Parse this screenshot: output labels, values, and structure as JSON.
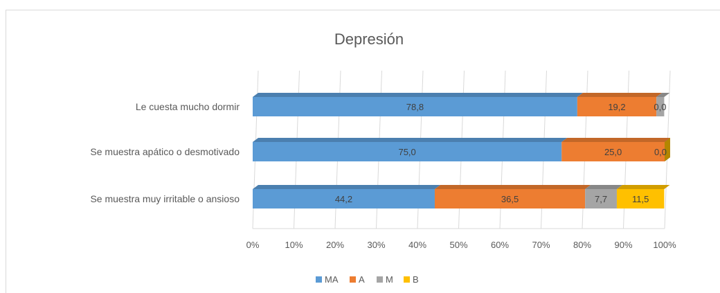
{
  "chart_data": {
    "type": "bar",
    "orientation": "horizontal",
    "stacked": "percent",
    "title": "Depresión",
    "categories": [
      "Le cuesta mucho dormir",
      "Se muestra apático o desmotivado",
      "Se muestra muy irritable o ansioso"
    ],
    "series": [
      {
        "name": "MA",
        "color": "#5b9bd5",
        "values": [
          78.8,
          75.0,
          44.2
        ],
        "labels": [
          "78,8",
          "75,0",
          "44,2"
        ]
      },
      {
        "name": "A",
        "color": "#ed7d31",
        "values": [
          19.2,
          25.0,
          36.5
        ],
        "labels": [
          "19,2",
          "25,0",
          "36,5"
        ]
      },
      {
        "name": "M",
        "color": "#a5a5a5",
        "values": [
          1.9,
          0.0,
          7.7
        ],
        "labels": [
          "",
          "",
          "7,7"
        ]
      },
      {
        "name": "B",
        "color": "#ffc000",
        "values": [
          0.0,
          0.0,
          11.5
        ],
        "labels": [
          "0,0",
          "0,0",
          "11,5"
        ]
      }
    ],
    "xlim": [
      0,
      100
    ],
    "xticks": [
      "0%",
      "10%",
      "20%",
      "30%",
      "40%",
      "50%",
      "60%",
      "70%",
      "80%",
      "90%",
      "100%"
    ],
    "grid": true,
    "legend_position": "bottom"
  }
}
